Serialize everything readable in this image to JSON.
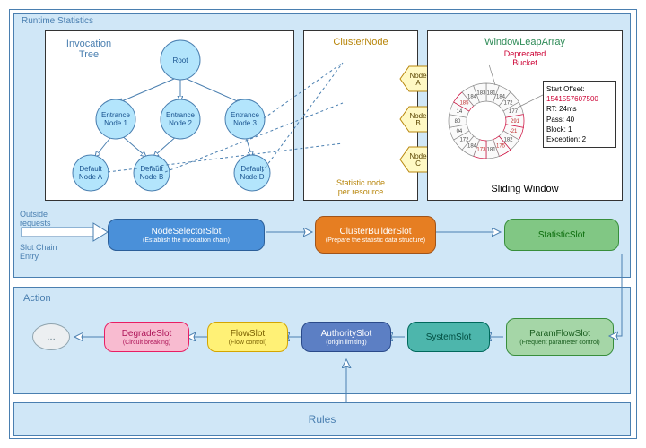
{
  "type": "flowchart",
  "colors": {
    "outline": "#4a7fb0",
    "panel_bg": "#d0e7f7",
    "box_bg": "#ffffff",
    "node_fill": "#b3e5fc",
    "hex_fill": "#fff9c4",
    "red": "#c03030"
  },
  "runtime": {
    "label": "Runtime Statistics",
    "tree": {
      "title": "Invocation\nTree",
      "root": "Root",
      "entrances": [
        "Entrance\nNode 1",
        "Entrance\nNode 2",
        "Entrance\nNode 3"
      ],
      "defaults": [
        "Default\nNode A",
        "Default\nNode B",
        "Default\nNode D"
      ]
    },
    "cluster": {
      "title": "ClusterNode",
      "nodes": [
        "Node\nA",
        "Node\nB",
        "Node\nC"
      ],
      "sub": "Statistic node\nper resource"
    },
    "window": {
      "title": "WindowLeapArray",
      "dep": "Deprecated\nBucket",
      "info": {
        "start": "Start Offset:",
        "so": "1541557607500",
        "rt": "RT: 24ms",
        "pass": "Pass: 40",
        "block": "Block: 1",
        "exc": "Exception: 2"
      },
      "caption": "Sliding Window",
      "segments": [
        {
          "t": "181",
          "r": false
        },
        {
          "t": "184",
          "r": false
        },
        {
          "t": "172",
          "r": false
        },
        {
          "t": "177",
          "r": false
        },
        {
          "t": "291",
          "r": true
        },
        {
          "t": "-21",
          "r": true
        },
        {
          "t": "182",
          "r": false
        },
        {
          "t": "175",
          "r": true
        },
        {
          "t": "181",
          "r": false
        },
        {
          "t": "173",
          "r": true
        },
        {
          "t": "184",
          "r": false
        },
        {
          "t": "172",
          "r": false
        },
        {
          "t": "04",
          "r": false
        },
        {
          "t": "80",
          "r": false
        },
        {
          "t": "14",
          "r": false
        },
        {
          "t": "185",
          "r": true
        },
        {
          "t": "184",
          "r": false
        },
        {
          "t": "183",
          "r": false
        }
      ]
    },
    "outside": "Outside\nrequests",
    "entry": "Slot Chain\nEntry",
    "slots": [
      {
        "name": "NodeSelectorSlot",
        "sub": "(Establish the invocation chain)",
        "cls": "blue"
      },
      {
        "name": "ClusterBuilderSlot",
        "sub": "(Prepare the statistic data structure)",
        "cls": "orange"
      },
      {
        "name": "StatisticSlot",
        "sub": "",
        "cls": "green"
      }
    ]
  },
  "action": {
    "label": "Action",
    "slots": [
      {
        "name": "…",
        "sub": "",
        "cls": "ellipsis"
      },
      {
        "name": "DegradeSlot",
        "sub": "(Circuit breaking)",
        "cls": "pink"
      },
      {
        "name": "FlowSlot",
        "sub": "(Flow control)",
        "cls": "yellow"
      },
      {
        "name": "AuthoritySlot",
        "sub": "(origin limiting)",
        "cls": "blue2"
      },
      {
        "name": "SystemSlot",
        "sub": "",
        "cls": "teal"
      },
      {
        "name": "ParamFlowSlot",
        "sub": "(Frequent parameter control)",
        "cls": "mint"
      }
    ]
  },
  "rules": {
    "label": "Rules"
  }
}
